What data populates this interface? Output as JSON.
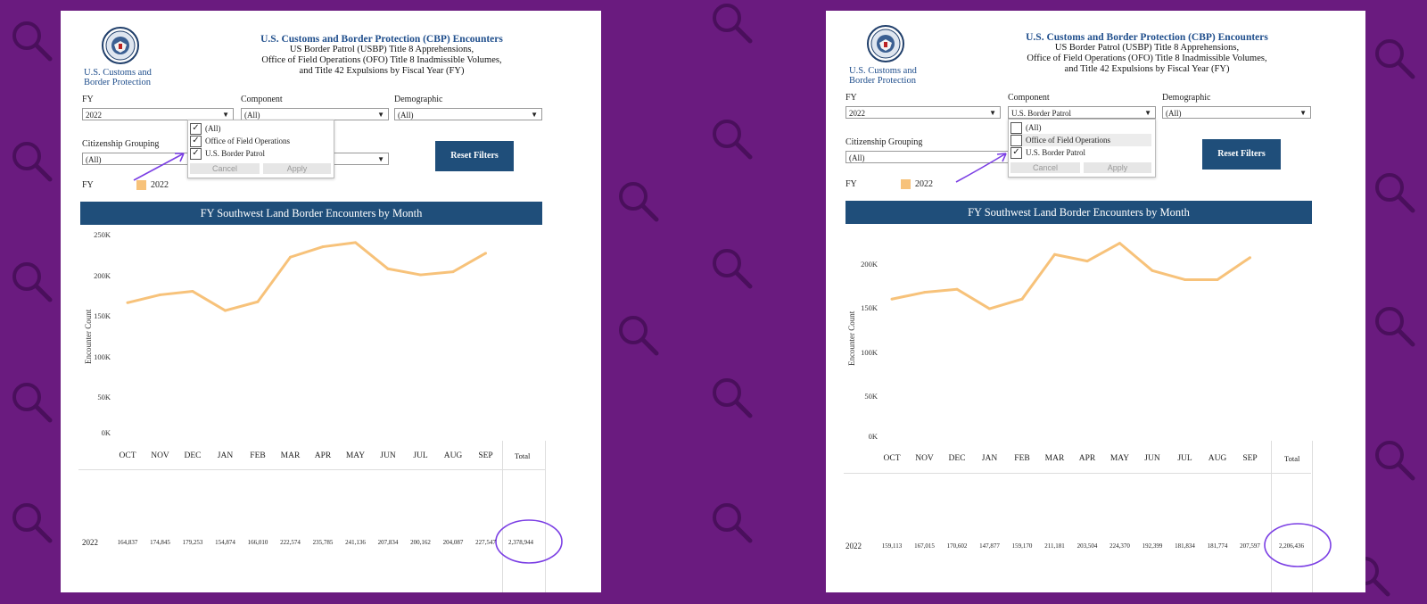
{
  "header": {
    "title": "U.S. Customs and Border Protection (CBP) Encounters",
    "line2": "US Border Patrol (USBP) Title 8 Apprehensions,",
    "line3": "Office of Field Operations (OFO) Title 8 Inadmissible Volumes,",
    "line4": "and Title 42 Expulsions by Fiscal Year (FY)",
    "logo_line1": "U.S. Customs and",
    "logo_line2": "Border Protection"
  },
  "filters": {
    "fy_label": "FY",
    "component_label": "Component",
    "demographic_label": "Demographic",
    "citizenship_label": "Citizenship Grouping",
    "reset_label": "Reset Filters",
    "all": "(All)"
  },
  "left": {
    "fy_value": "2022",
    "component_value": "(All)",
    "demographic_value": "(All)",
    "citizenship_value": "(All)",
    "dropdown": {
      "options": [
        {
          "label": "(All)",
          "checked": true
        },
        {
          "label": "Office of Field Operations",
          "checked": true
        },
        {
          "label": "U.S. Border Patrol",
          "checked": true
        }
      ],
      "cancel": "Cancel",
      "apply": "Apply"
    },
    "legend_title": "FY",
    "legend_item": "2022",
    "chart_title": "FY Southwest Land Border Encounters by Month",
    "y_axis_title": "Encounter Count",
    "y_ticks": [
      "250K",
      "200K",
      "150K",
      "100K",
      "50K",
      "0K"
    ],
    "months": [
      "OCT",
      "NOV",
      "DEC",
      "JAN",
      "FEB",
      "MAR",
      "APR",
      "MAY",
      "JUN",
      "JUL",
      "AUG",
      "SEP"
    ],
    "total_header": "Total",
    "row_year": "2022",
    "row_values": [
      "164,837",
      "174,845",
      "179,253",
      "154,874",
      "166,010",
      "222,574",
      "235,785",
      "241,136",
      "207,834",
      "200,162",
      "204,087",
      "227,547"
    ],
    "total_value": "2,378,944"
  },
  "right": {
    "fy_value": "2022",
    "component_value": "U.S. Border Patrol",
    "demographic_value": "(All)",
    "citizenship_value": "(All)",
    "dropdown": {
      "options": [
        {
          "label": "(All)",
          "checked": false
        },
        {
          "label": "Office of Field Operations",
          "checked": false
        },
        {
          "label": "U.S. Border Patrol",
          "checked": true
        }
      ],
      "cancel": "Cancel",
      "apply": "Apply"
    },
    "legend_title": "FY",
    "legend_item": "2022",
    "chart_title": "FY Southwest Land Border Encounters by Month",
    "y_axis_title": "Encounter Count",
    "y_ticks": [
      "200K",
      "150K",
      "100K",
      "50K",
      "0K"
    ],
    "months": [
      "OCT",
      "NOV",
      "DEC",
      "JAN",
      "FEB",
      "MAR",
      "APR",
      "MAY",
      "JUN",
      "JUL",
      "AUG",
      "SEP"
    ],
    "total_header": "Total",
    "row_year": "2022",
    "row_values": [
      "159,113",
      "167,015",
      "170,602",
      "147,877",
      "159,170",
      "211,181",
      "203,504",
      "224,370",
      "192,399",
      "181,834",
      "181,774",
      "207,597"
    ],
    "total_value": "2,206,436"
  },
  "colors": {
    "background": "#6a1b7f",
    "title_bar": "#1f4e7a",
    "line": "#f7c27a",
    "annotation": "#7b3fe4"
  },
  "chart_data": [
    {
      "type": "line",
      "title": "FY Southwest Land Border Encounters by Month",
      "xlabel": "",
      "ylabel": "Encounter Count",
      "ylim": [
        0,
        250000
      ],
      "categories": [
        "OCT",
        "NOV",
        "DEC",
        "JAN",
        "FEB",
        "MAR",
        "APR",
        "MAY",
        "JUN",
        "JUL",
        "AUG",
        "SEP"
      ],
      "series": [
        {
          "name": "2022",
          "values": [
            164837,
            174845,
            179253,
            154874,
            166010,
            222574,
            235785,
            241136,
            207834,
            200162,
            204087,
            227547
          ]
        }
      ],
      "filter": "Component: (All)"
    },
    {
      "type": "line",
      "title": "FY Southwest Land Border Encounters by Month",
      "xlabel": "",
      "ylabel": "Encounter Count",
      "ylim": [
        0,
        225000
      ],
      "categories": [
        "OCT",
        "NOV",
        "DEC",
        "JAN",
        "FEB",
        "MAR",
        "APR",
        "MAY",
        "JUN",
        "JUL",
        "AUG",
        "SEP"
      ],
      "series": [
        {
          "name": "2022",
          "values": [
            159113,
            167015,
            170602,
            147877,
            159170,
            211181,
            203504,
            224370,
            192399,
            181834,
            181774,
            207597
          ]
        }
      ],
      "filter": "Component: U.S. Border Patrol"
    }
  ]
}
